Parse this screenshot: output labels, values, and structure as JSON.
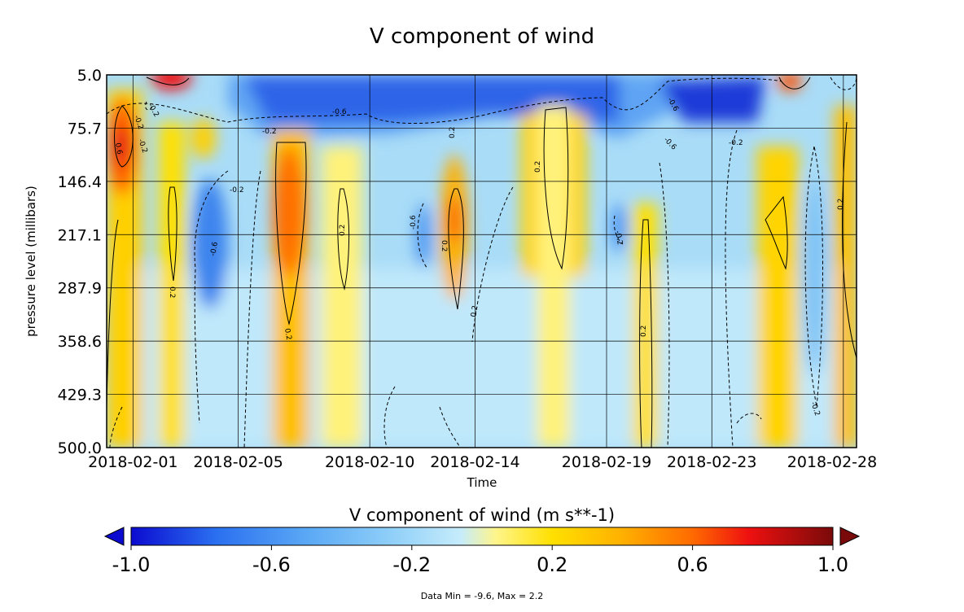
{
  "chart_data": {
    "type": "heatmap",
    "title": "V component of wind",
    "xlabel": "Time",
    "ylabel": "pressure level (millibars)",
    "x_tick_labels": [
      "2018-02-01",
      "2018-02-05",
      "2018-02-10",
      "2018-02-14",
      "2018-02-19",
      "2018-02-23",
      "2018-02-28"
    ],
    "x_tick_dates": [
      "2018-02-01",
      "2018-02-05",
      "2018-02-10",
      "2018-02-14",
      "2018-02-19",
      "2018-02-23",
      "2018-02-28"
    ],
    "y_tick_labels": [
      "5.0",
      "75.7",
      "146.4",
      "217.1",
      "287.9",
      "358.6",
      "429.3",
      "500.0"
    ],
    "y_range": [
      5.0,
      500.0
    ],
    "y_inverted": true,
    "grid": true,
    "colorbar": {
      "title": "V component of wind (m s**-1)",
      "range": [
        -1.0,
        1.0
      ],
      "tick_labels": [
        "-1.0",
        "-0.6",
        "-0.2",
        "0.2",
        "0.6",
        "1.0"
      ],
      "tick_values": [
        -1.0,
        -0.6,
        -0.2,
        0.2,
        0.6,
        1.0
      ],
      "extend": "both",
      "colors": [
        "#0b0bd0",
        "#2a6ff0",
        "#5aa8f5",
        "#8fcff8",
        "#c6ecfb",
        "#fff58a",
        "#ffe000",
        "#ffb000",
        "#ff6a00",
        "#ee1010",
        "#7a0a0a"
      ]
    },
    "contour_levels": [
      -0.6,
      -0.2,
      0.2,
      0.6
    ],
    "contour_labels": [
      "-0.2",
      "-0.2",
      "-0.6",
      "-0.2",
      "-0.6",
      "-0.2",
      "-0.6",
      "0.6",
      "0.2",
      "0.2",
      "0.2",
      "0.2",
      "0.2",
      "0.2",
      "0.2",
      "0.2",
      "0.2",
      "-0.6",
      "-0.2",
      "-0.6",
      "-0.2",
      "-0.2",
      "-0.2"
    ],
    "features": [
      {
        "date": "2018-01-31",
        "p_top": 75,
        "p_bottom": 210,
        "value": 0.7
      },
      {
        "date": "2018-02-02",
        "p_top": 200,
        "p_bottom": 500,
        "value": 0.35
      },
      {
        "date": "2018-02-04",
        "p_top": 170,
        "p_bottom": 330,
        "value": -0.6
      },
      {
        "date": "2018-02-07",
        "p_top": 75,
        "p_bottom": 360,
        "value": 0.6
      },
      {
        "date": "2018-02-09",
        "p_top": 130,
        "p_bottom": 500,
        "value": 0.3
      },
      {
        "date": "2018-02-13",
        "p_top": 130,
        "p_bottom": 330,
        "value": 0.5
      },
      {
        "date": "2018-02-17",
        "p_top": 40,
        "p_bottom": 320,
        "value": 0.35
      },
      {
        "date": "2018-02-20",
        "p_top": 200,
        "p_bottom": 500,
        "value": 0.6
      },
      {
        "date": "2018-02-25",
        "p_top": 150,
        "p_bottom": 500,
        "value": 0.35
      },
      {
        "date": "2018-02-27",
        "p_top": 200,
        "p_bottom": 500,
        "value": 0.45
      },
      {
        "date": "2018-02-15",
        "p_top": 5,
        "p_bottom": 60,
        "value": -1.0
      }
    ],
    "footnote": "Data Min = -9.6, Max = 2.2"
  }
}
